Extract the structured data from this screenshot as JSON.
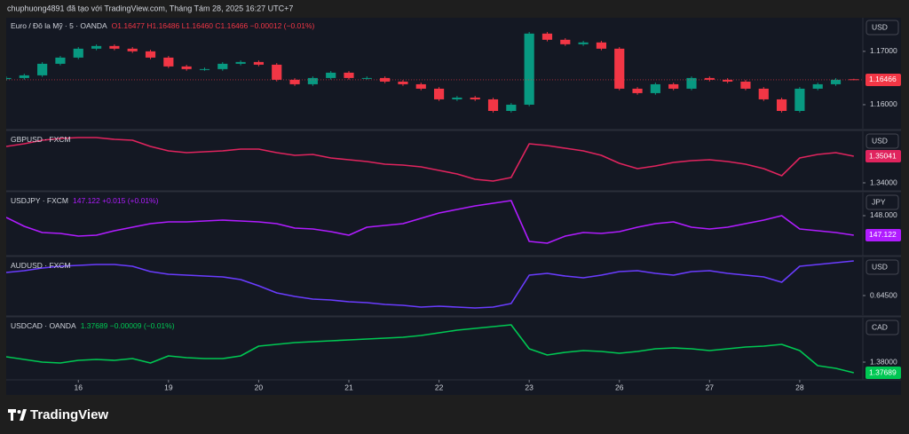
{
  "header": "chuphuong4891 đã tạo với TradingView.com, Tháng Tám 28, 2025 16:27 UTC+7",
  "footer_brand": "TradingView",
  "chart_data": [
    {
      "type": "candlestick",
      "title": "Euro / Đô la Mỹ · 5 · OANDA",
      "status": "O1.16477 H1.16486 L1.16460 C1.16466 −0.00012 (−0.01%)",
      "currency": "USD",
      "up_color": "#089981",
      "down_color": "#f23645",
      "x": [
        -0.8,
        -0.6,
        -0.4,
        -0.2,
        0,
        0.2,
        0.4,
        0.6,
        0.8,
        1,
        1.2,
        1.4,
        1.6,
        1.8,
        2,
        2.2,
        2.4,
        2.6,
        2.8,
        3,
        3.2,
        3.4,
        3.6,
        3.8,
        4,
        4.2,
        4.4,
        4.6,
        4.8,
        5,
        5.2,
        5.4,
        5.6,
        5.8,
        6,
        6.2,
        6.4,
        6.6,
        6.8,
        7,
        7.2,
        7.4,
        7.6,
        7.8,
        8,
        8.2,
        8.4,
        8.6
      ],
      "open": [
        1.1648,
        1.165,
        1.1655,
        1.16767,
        1.16883,
        1.1705,
        1.171,
        1.1705,
        1.17,
        1.16883,
        1.16717,
        1.16667,
        1.16667,
        1.16767,
        1.168,
        1.1675,
        1.16467,
        1.16383,
        1.165,
        1.166,
        1.165,
        1.165,
        1.16433,
        1.16383,
        1.163,
        1.161,
        1.16133,
        1.161,
        1.15883,
        1.16,
        1.17333,
        1.17217,
        1.17133,
        1.17167,
        1.1705,
        1.163,
        1.16217,
        1.16383,
        1.163,
        1.165,
        1.16467,
        1.16433,
        1.163,
        1.161,
        1.15883,
        1.163,
        1.16383,
        1.16477
      ],
      "high": [
        1.1653,
        1.1658,
        1.16797,
        1.16913,
        1.1708,
        1.1713,
        1.1713,
        1.1708,
        1.1703,
        1.16913,
        1.16747,
        1.16697,
        1.16797,
        1.1683,
        1.1683,
        1.1678,
        1.16497,
        1.1653,
        1.1663,
        1.1663,
        1.1653,
        1.1653,
        1.16463,
        1.16413,
        1.1633,
        1.16163,
        1.16163,
        1.1613,
        1.1603,
        1.17363,
        1.17363,
        1.17247,
        1.17197,
        1.17197,
        1.1708,
        1.1633,
        1.16413,
        1.16413,
        1.1653,
        1.1653,
        1.16497,
        1.16463,
        1.1633,
        1.1613,
        1.1633,
        1.16413,
        1.16497,
        1.16486
      ],
      "low": [
        1.1645,
        1.1647,
        1.1652,
        1.16737,
        1.16853,
        1.1702,
        1.1702,
        1.1697,
        1.16853,
        1.16687,
        1.16637,
        1.16637,
        1.16637,
        1.16737,
        1.1672,
        1.16437,
        1.16353,
        1.16353,
        1.1647,
        1.1647,
        1.1647,
        1.16403,
        1.16353,
        1.1627,
        1.1607,
        1.1607,
        1.1607,
        1.15853,
        1.15853,
        1.1597,
        1.17187,
        1.17103,
        1.17103,
        1.1702,
        1.1627,
        1.16187,
        1.16187,
        1.1627,
        1.1627,
        1.16437,
        1.16403,
        1.1627,
        1.1607,
        1.15853,
        1.15853,
        1.1627,
        1.16353,
        1.1646
      ],
      "close": [
        1.165,
        1.1655,
        1.16767,
        1.16883,
        1.1705,
        1.171,
        1.1705,
        1.17,
        1.16883,
        1.16717,
        1.16667,
        1.16667,
        1.16767,
        1.168,
        1.1675,
        1.16467,
        1.16383,
        1.165,
        1.166,
        1.165,
        1.165,
        1.16433,
        1.16383,
        1.163,
        1.161,
        1.16133,
        1.161,
        1.15883,
        1.16,
        1.17333,
        1.17217,
        1.17133,
        1.17167,
        1.1705,
        1.163,
        1.16217,
        1.16383,
        1.163,
        1.165,
        1.16467,
        1.16433,
        1.163,
        1.161,
        1.15883,
        1.163,
        1.16383,
        1.16467,
        1.16466
      ],
      "xlim": [
        -0.8,
        8.7
      ],
      "ylim": [
        1.1555,
        1.1763
      ],
      "yticks": [
        {
          "value": 1.17,
          "label": "1.17000"
        },
        {
          "value": 1.16,
          "label": "1.16000"
        }
      ]
    },
    {
      "type": "line",
      "title": "GBPUSD · FXCM",
      "currency": "USD",
      "color": "#e0245e",
      "x": [
        -0.8,
        -0.6,
        -0.4,
        -0.2,
        0,
        0.2,
        0.4,
        0.6,
        0.8,
        1,
        1.2,
        1.4,
        1.6,
        1.8,
        2,
        2.2,
        2.4,
        2.6,
        2.8,
        3,
        3.2,
        3.4,
        3.6,
        3.8,
        4,
        4.2,
        4.4,
        4.6,
        4.8,
        5,
        5.2,
        5.4,
        5.6,
        5.8,
        6,
        6.2,
        6.4,
        6.6,
        6.8,
        7,
        7.2,
        7.4,
        7.6,
        7.8,
        8,
        8.2,
        8.4,
        8.6
      ],
      "values": [
        1.35423,
        1.35527,
        1.35666,
        1.35735,
        1.3577,
        1.3577,
        1.357,
        1.35666,
        1.35423,
        1.35249,
        1.3518,
        1.35214,
        1.35249,
        1.35319,
        1.35319,
        1.3518,
        1.35076,
        1.3511,
        1.34972,
        1.34902,
        1.34833,
        1.34729,
        1.34694,
        1.34625,
        1.34486,
        1.34347,
        1.34139,
        1.34069,
        1.34208,
        1.35527,
        1.35457,
        1.35353,
        1.35249,
        1.35076,
        1.34763,
        1.34555,
        1.34659,
        1.34798,
        1.34867,
        1.34902,
        1.34833,
        1.34729,
        1.34555,
        1.34278,
        1.34972,
        1.3511,
        1.3518,
        1.35041
      ],
      "xlim": [
        -0.8,
        8.7
      ],
      "ylim": [
        1.33688,
        1.36013
      ],
      "yticks": [
        {
          "value": 1.34,
          "label": "1.34000"
        }
      ]
    },
    {
      "type": "line",
      "title": "USDJPY · FXCM",
      "status": "147.122 +0.015 (+0.01%)",
      "currency": "JPY",
      "color": "#b01cff",
      "x": [
        -0.8,
        -0.6,
        -0.4,
        -0.2,
        0,
        0.2,
        0.4,
        0.6,
        0.8,
        1,
        1.2,
        1.4,
        1.6,
        1.8,
        2,
        2.2,
        2.4,
        2.6,
        2.8,
        3,
        3.2,
        3.4,
        3.6,
        3.8,
        4,
        4.2,
        4.4,
        4.6,
        4.8,
        5,
        5.2,
        5.4,
        5.6,
        5.8,
        6,
        6.2,
        6.4,
        6.6,
        6.8,
        7,
        7.2,
        7.4,
        7.6,
        7.8,
        8,
        8.2,
        8.4,
        8.6
      ],
      "values": [
        147.92,
        147.521,
        147.242,
        147.202,
        147.082,
        147.122,
        147.322,
        147.481,
        147.641,
        147.721,
        147.721,
        147.761,
        147.8,
        147.761,
        147.721,
        147.641,
        147.441,
        147.401,
        147.282,
        147.122,
        147.481,
        147.561,
        147.641,
        147.88,
        148.12,
        148.279,
        148.439,
        148.559,
        148.678,
        146.843,
        146.763,
        147.082,
        147.242,
        147.202,
        147.282,
        147.481,
        147.641,
        147.721,
        147.481,
        147.401,
        147.481,
        147.641,
        147.8,
        148.0,
        147.401,
        147.322,
        147.242,
        147.122
      ],
      "xlim": [
        -0.8,
        8.7
      ],
      "ylim": [
        146.204,
        149.037
      ],
      "yticks": [
        {
          "value": 148,
          "label": "148.000"
        }
      ]
    },
    {
      "type": "line",
      "title": "AUDUSD · FXCM",
      "currency": "USD",
      "color": "#6a3cff",
      "x": [
        -0.8,
        -0.6,
        -0.4,
        -0.2,
        0,
        0.2,
        0.4,
        0.6,
        0.8,
        1,
        1.2,
        1.4,
        1.6,
        1.8,
        2,
        2.2,
        2.4,
        2.6,
        2.8,
        3,
        3.2,
        3.4,
        3.6,
        3.8,
        4,
        4.2,
        4.4,
        4.6,
        4.8,
        5,
        5.2,
        5.4,
        5.6,
        5.8,
        6,
        6.2,
        6.4,
        6.6,
        6.8,
        7,
        7.2,
        7.4,
        7.6,
        7.8,
        8,
        8.2,
        8.4,
        8.6
      ],
      "values": [
        0.65042,
        0.65083,
        0.65146,
        0.65188,
        0.65208,
        0.65229,
        0.65229,
        0.65188,
        0.65063,
        0.65,
        0.64979,
        0.64958,
        0.64938,
        0.64875,
        0.64729,
        0.64563,
        0.64479,
        0.64417,
        0.64396,
        0.64354,
        0.64333,
        0.64292,
        0.64271,
        0.64229,
        0.6425,
        0.64229,
        0.64208,
        0.64229,
        0.64313,
        0.64979,
        0.65021,
        0.64958,
        0.64917,
        0.64979,
        0.65063,
        0.65083,
        0.65021,
        0.64979,
        0.65063,
        0.65083,
        0.65021,
        0.64979,
        0.64938,
        0.64813,
        0.65188,
        0.65229,
        0.65271,
        0.65313
      ],
      "xlim": [
        -0.8,
        8.7
      ],
      "ylim": [
        0.64042,
        0.65396
      ],
      "yticks": [
        {
          "value": 0.645,
          "label": "0.64500"
        }
      ]
    },
    {
      "type": "line",
      "title": "USDCAD · OANDA",
      "status": "1.37689 −0.00009 (−0.01%)",
      "currency": "CAD",
      "color": "#00c853",
      "x": [
        -0.8,
        -0.6,
        -0.4,
        -0.2,
        0,
        0.2,
        0.4,
        0.6,
        0.8,
        1,
        1.2,
        1.4,
        1.6,
        1.8,
        2,
        2.2,
        2.4,
        2.6,
        2.8,
        3,
        3.2,
        3.4,
        3.6,
        3.8,
        4,
        4.2,
        4.4,
        4.6,
        4.8,
        5,
        5.2,
        5.4,
        5.6,
        5.8,
        6,
        6.2,
        6.4,
        6.6,
        6.8,
        7,
        7.2,
        7.4,
        7.6,
        7.8,
        8,
        8.2,
        8.4,
        8.6
      ],
      "values": [
        1.38155,
        1.38078,
        1.38,
        1.37974,
        1.38052,
        1.38078,
        1.38052,
        1.38104,
        1.37974,
        1.38181,
        1.3813,
        1.38104,
        1.38104,
        1.38181,
        1.38466,
        1.38518,
        1.3857,
        1.38596,
        1.38622,
        1.38648,
        1.38674,
        1.387,
        1.38726,
        1.38777,
        1.38855,
        1.38933,
        1.38985,
        1.39037,
        1.39088,
        1.38389,
        1.38207,
        1.38285,
        1.38337,
        1.38311,
        1.38259,
        1.38311,
        1.38389,
        1.38415,
        1.38389,
        1.38337,
        1.38389,
        1.38441,
        1.38466,
        1.38518,
        1.38337,
        1.37896,
        1.37819,
        1.37689
      ],
      "xlim": [
        -0.8,
        8.7
      ],
      "ylim": [
        1.37482,
        1.39296
      ],
      "yticks": [
        {
          "value": 1.38,
          "label": "1.38000"
        }
      ],
      "xticks": [
        {
          "value": 0,
          "label": "16"
        },
        {
          "value": 1,
          "label": "19"
        },
        {
          "value": 2,
          "label": "20"
        },
        {
          "value": 3,
          "label": "21"
        },
        {
          "value": 4,
          "label": "22"
        },
        {
          "value": 5,
          "label": "23"
        },
        {
          "value": 6,
          "label": "26"
        },
        {
          "value": 7,
          "label": "27"
        },
        {
          "value": 8,
          "label": "28"
        }
      ]
    }
  ]
}
